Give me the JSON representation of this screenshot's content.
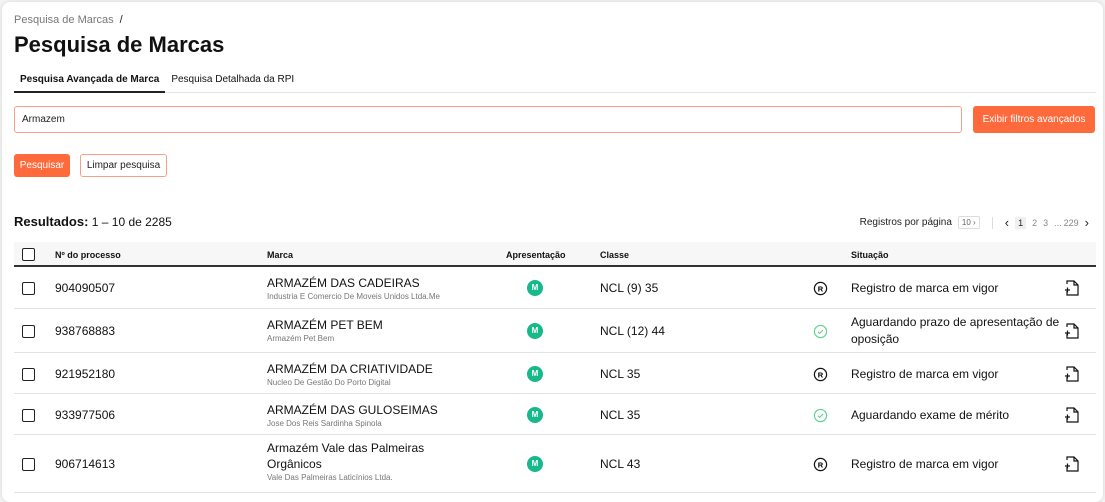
{
  "breadcrumb": {
    "item": "Pesquisa de Marcas",
    "separator": "/"
  },
  "page_title": "Pesquisa de Marcas",
  "tabs": [
    {
      "label": "Pesquisa Avançada de Marca",
      "active": true
    },
    {
      "label": "Pesquisa Detalhada da RPI",
      "active": false
    }
  ],
  "search": {
    "value": "Armazem"
  },
  "buttons": {
    "advanced_filters": "Exibir filtros avançados",
    "search": "Pesquisar",
    "clear": "Limpar pesquisa"
  },
  "results": {
    "label": "Resultados:",
    "range": "1 – 10 de 2285"
  },
  "pagination": {
    "per_page_label": "Registros por página",
    "per_page": "10",
    "pages": [
      "1",
      "2",
      "3",
      "...",
      "229"
    ],
    "current": "1"
  },
  "table": {
    "headers": [
      "Nº do processo",
      "Marca",
      "Apresentação",
      "Classe",
      "Situação"
    ],
    "rows": [
      {
        "process": "904090507",
        "brand": "ARMAZÉM DAS CADEIRAS",
        "owner": "Industria E Comercio De Moveis Unidos Ltda.Me",
        "presentation": "M",
        "class": "NCL (9) 35",
        "status_icon": "registered-icon",
        "status": "Registro de marca em vigor"
      },
      {
        "process": "938768883",
        "brand": "ARMAZÉM PET BEM",
        "owner": "Armazém Pet Bem",
        "presentation": "M",
        "class": "NCL (12) 44",
        "status_icon": "check-circle-icon",
        "status": "Aguardando prazo de apresentação de oposição"
      },
      {
        "process": "921952180",
        "brand": "ARMAZÉM DA CRIATIVIDADE",
        "owner": "Nucleo De Gestão Do Porto Digital",
        "presentation": "M",
        "class": "NCL 35",
        "status_icon": "registered-icon",
        "status": "Registro de marca em vigor"
      },
      {
        "process": "933977506",
        "brand": "ARMAZÉM DAS GULOSEIMAS",
        "owner": "Jose Dos Reis Sardinha Spinola",
        "presentation": "M",
        "class": "NCL 35",
        "status_icon": "check-circle-icon",
        "status": "Aguardando exame de mérito"
      },
      {
        "process": "906714613",
        "brand": "Armazém Vale das Palmeiras Orgânicos",
        "owner": "Vale Das Palmeiras Laticínios Ltda.",
        "presentation": "M",
        "class": "NCL 43",
        "status_icon": "registered-icon",
        "status": "Registro de marca em vigor"
      }
    ]
  },
  "colors": {
    "accent": "#ff6a3d",
    "presentation_badge": "#17b889",
    "check": "#5fcf8f"
  }
}
